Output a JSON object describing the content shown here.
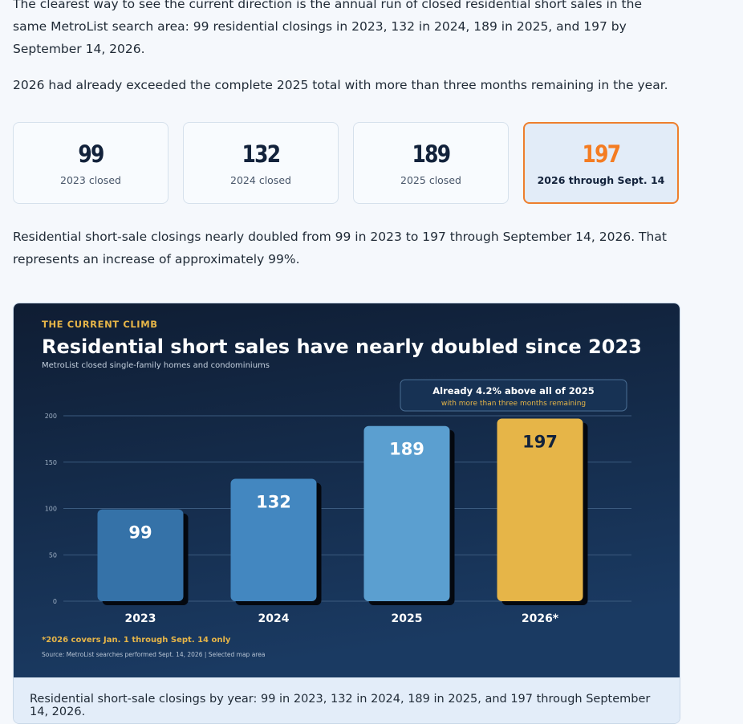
{
  "intro": {
    "paragraph1": "The clearest way to see the current direction is the annual run of closed residential short sales in the same MetroList search area: 99 residential closings in 2023, 132 in 2024, 189 in 2025, and 197 by September 14, 2026.",
    "paragraph2": "2026 had already exceeded the complete 2025 total with more than three months remaining in the year.",
    "paragraph3": "Residential short-sale closings nearly doubled from 99 in 2023 to 197 through September 14, 2026. That represents an increase of approximately 99%."
  },
  "stats": [
    {
      "value": "99",
      "label": "2023 closed"
    },
    {
      "value": "132",
      "label": "2024 closed"
    },
    {
      "value": "189",
      "label": "2025 closed"
    },
    {
      "value": "197",
      "label": "2026 through Sept. 14"
    }
  ],
  "chart_data": {
    "type": "bar",
    "eyebrow": "THE CURRENT CLIMB",
    "title": "Residential short sales have nearly doubled since 2023",
    "subtitle": "MetroList closed single-family homes and condominiums",
    "categories": [
      "2023",
      "2024",
      "2025",
      "2026*"
    ],
    "values": [
      99,
      132,
      189,
      197
    ],
    "value_labels": [
      "99",
      "132",
      "189",
      "197"
    ],
    "bar_colors": [
      "#3572a8",
      "#4387c0",
      "#5b9fd0",
      "#e6b548"
    ],
    "ylim": [
      0,
      200
    ],
    "yticks": [
      0,
      50,
      100,
      150,
      200
    ],
    "ytick_labels": [
      "0",
      "50",
      "100",
      "150",
      "200"
    ],
    "grid": true,
    "callout": {
      "title": "Already 4.2% above all of 2025",
      "subtitle": "with more than three months remaining"
    },
    "footnote": "*2026 covers Jan. 1 through Sept. 14 only",
    "source": "Source: MetroList searches performed Sept. 14, 2026 | Selected map area"
  },
  "caption": "Residential short-sale closings by year: 99 in 2023, 132 in 2024, 189 in 2025, and 197 through September 14, 2026.",
  "colors": {
    "accent_orange": "#f47c22",
    "chart_bg_top": "#0f1d33",
    "chart_bg_bottom": "#19355a",
    "gold": "#e6b548"
  }
}
